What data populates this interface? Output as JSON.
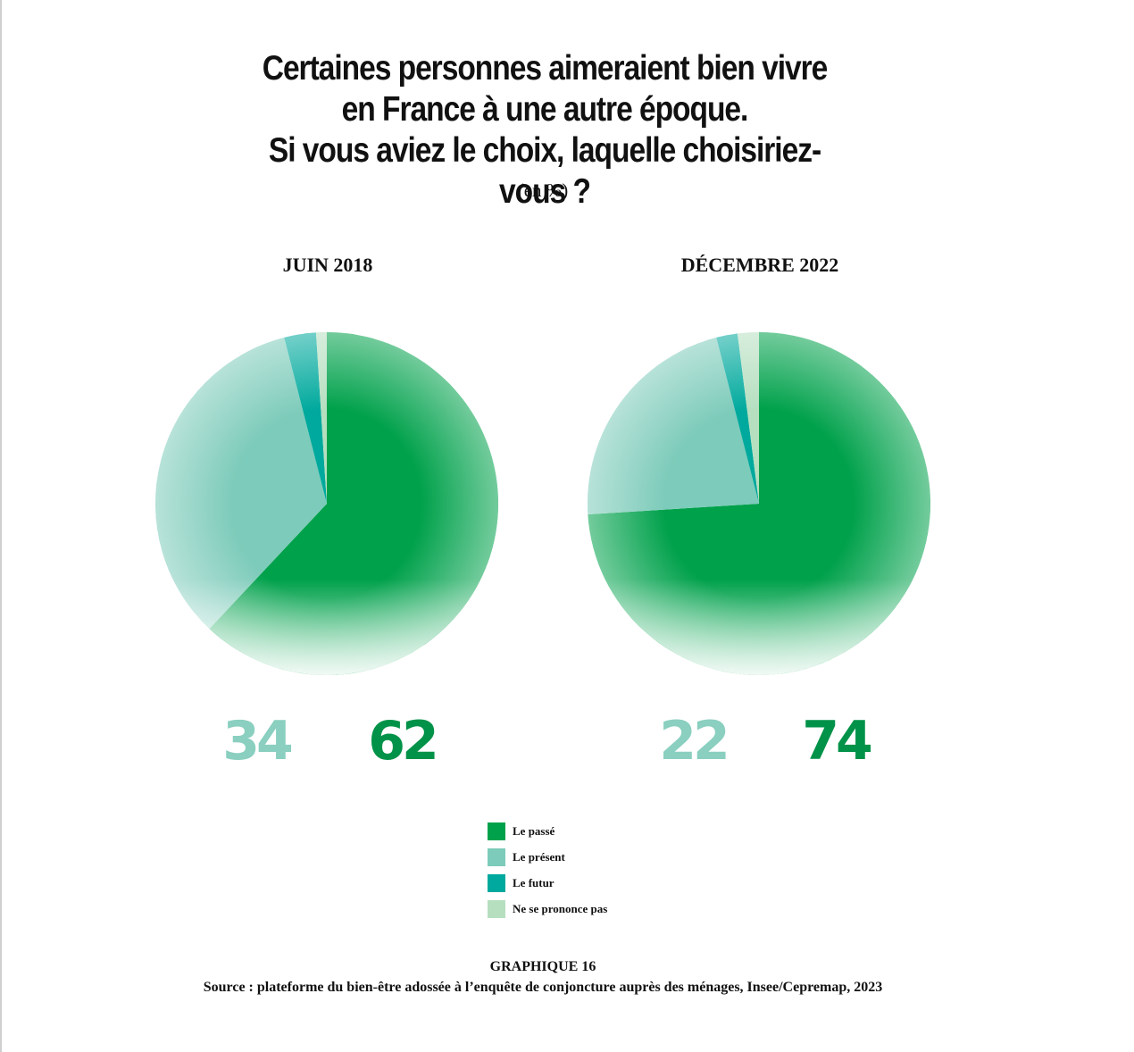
{
  "title_lines": [
    "Certaines personnes aimeraient bien vivre",
    "en France à une autre époque.",
    "Si vous aviez le choix, laquelle choisiriez-vous ?"
  ],
  "subtitle": "(en %)",
  "colors": {
    "passe": "#00a14b",
    "present": "#7dcbba",
    "futur": "#00a99d",
    "nspp": "#b6dfc0",
    "label_present": "#8acfc0",
    "label_passe": "#009248"
  },
  "chart_data": [
    {
      "type": "pie",
      "title": "JUIN 2018",
      "slices": [
        {
          "label": "Le passé",
          "value": 62,
          "shown": "62"
        },
        {
          "label": "Le présent",
          "value": 34,
          "shown": "34"
        },
        {
          "label": "Le futur",
          "value": 3
        },
        {
          "label": "Ne se prononce pas",
          "value": 1
        }
      ]
    },
    {
      "type": "pie",
      "title": "DÉCEMBRE 2022",
      "slices": [
        {
          "label": "Le passé",
          "value": 74,
          "shown": "74"
        },
        {
          "label": "Le présent",
          "value": 22,
          "shown": "22"
        },
        {
          "label": "Le futur",
          "value": 2
        },
        {
          "label": "Ne se prononce pas",
          "value": 2
        }
      ]
    }
  ],
  "legend": [
    {
      "label": "Le passé",
      "color_key": "passe"
    },
    {
      "label": "Le présent",
      "color_key": "present"
    },
    {
      "label": "Le futur",
      "color_key": "futur"
    },
    {
      "label": "Ne se prononce pas",
      "color_key": "nspp"
    }
  ],
  "figure_label": "GRAPHIQUE 16",
  "source": "Source : plateforme du bien-être adossée à l’enquête de conjoncture auprès des ménages, Insee/Cepremap, 2023"
}
